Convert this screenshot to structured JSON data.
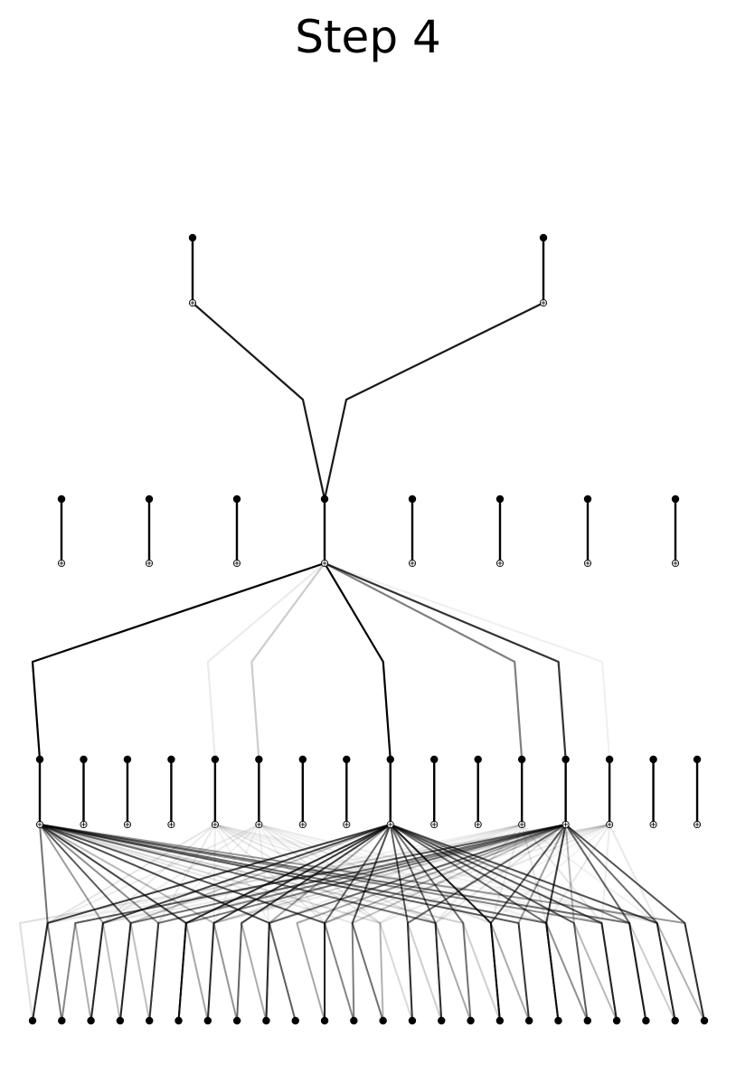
{
  "title": "Step 4",
  "colors": {
    "ink": "#000000",
    "background": "#ffffff"
  },
  "structure": {
    "layers": [
      {
        "nodes": 2
      },
      {
        "nodes": 8,
        "active_node": 3
      },
      {
        "nodes": 16,
        "active_sources": [
          0,
          8,
          12
        ]
      },
      {
        "nodes": 24
      }
    ],
    "links_into_layer_1": [
      {
        "from": 0,
        "to": 3,
        "strength": 0.9
      },
      {
        "from": 1,
        "to": 3,
        "strength": 0.9
      }
    ],
    "links_into_layer_2": [
      {
        "from": 3,
        "to": 0,
        "strength": 1.0
      },
      {
        "from": 3,
        "to": 4,
        "strength": 0.08
      },
      {
        "from": 3,
        "to": 5,
        "strength": 0.2
      },
      {
        "from": 3,
        "to": 8,
        "strength": 1.0
      },
      {
        "from": 3,
        "to": 11,
        "strength": 0.5
      },
      {
        "from": 3,
        "to": 12,
        "strength": 0.8
      },
      {
        "from": 3,
        "to": 13,
        "strength": 0.06
      }
    ]
  }
}
